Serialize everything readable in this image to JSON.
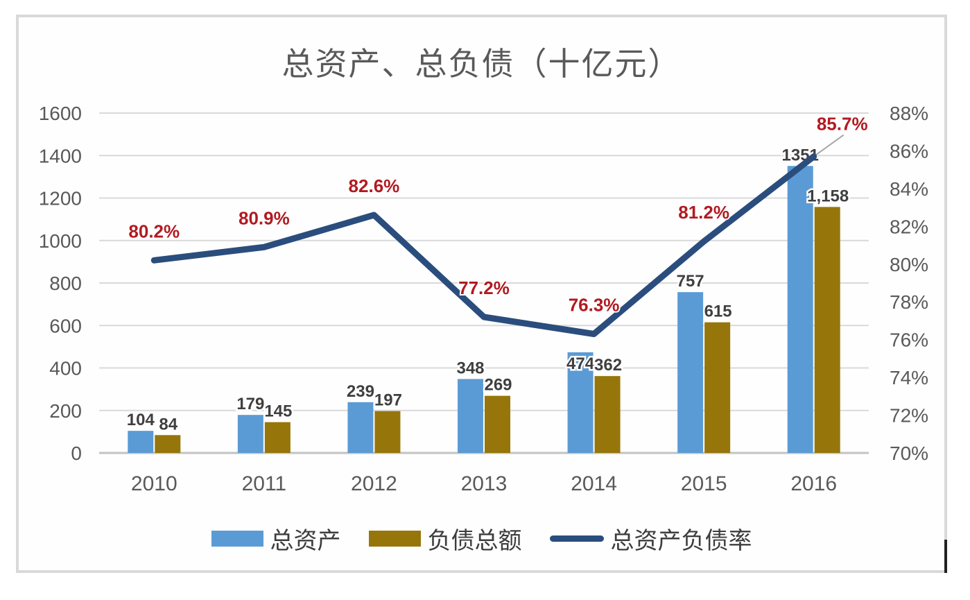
{
  "title": "总资产、总负债（十亿元）",
  "colors": {
    "assets_bar": "#5B9BD5",
    "liabilities_bar": "#96760A",
    "ratio_line": "#2A4D7D",
    "bar_label": "#3F3F3F",
    "line_label": "#B11A21",
    "axis_text": "#595959",
    "gridline": "#D9D9D9",
    "baseline": "#C3C3C3",
    "leader_line": "#A6A6A6"
  },
  "chart_data": {
    "type": "combo-bar-line",
    "title": "总资产、总负债（十亿元）",
    "categories": [
      "2010",
      "2011",
      "2012",
      "2013",
      "2014",
      "2015",
      "2016"
    ],
    "series": [
      {
        "name": "总资产",
        "type": "bar",
        "axis": "left",
        "color": "#5B9BD5",
        "values": [
          104,
          179,
          239,
          348,
          474,
          757,
          1351
        ],
        "labels": [
          "104",
          "179",
          "239",
          "348",
          "474",
          "757",
          "1351"
        ],
        "label_inside": [
          4
        ]
      },
      {
        "name": "负债总额",
        "type": "bar",
        "axis": "left",
        "color": "#96760A",
        "values": [
          84,
          145,
          197,
          269,
          362,
          615,
          1158
        ],
        "labels": [
          "84",
          "145",
          "197",
          "269",
          "362",
          "615",
          "1,158"
        ],
        "label_inside": []
      },
      {
        "name": "总资产负债率",
        "type": "line",
        "axis": "right",
        "color": "#2A4D7D",
        "values": [
          80.2,
          80.9,
          82.6,
          77.2,
          76.3,
          81.2,
          85.7
        ],
        "labels": [
          "80.2%",
          "80.9%",
          "82.6%",
          "77.2%",
          "76.3%",
          "81.2%",
          "85.7%"
        ],
        "label_inside": []
      }
    ],
    "left_axis": {
      "min": 0,
      "max": 1600,
      "step": 200,
      "tick_labels_top_to_bottom": [
        "1600",
        "1400",
        "1200",
        "1000",
        "800",
        "600",
        "400",
        "200",
        "0"
      ]
    },
    "right_axis": {
      "min": 70,
      "max": 88,
      "step": 2,
      "suffix": "%",
      "tick_labels_top_to_bottom": [
        "88%",
        "86%",
        "84%",
        "82%",
        "80%",
        "78%",
        "76%",
        "74%",
        "72%",
        "70%"
      ]
    },
    "grid": true,
    "legend_position": "bottom"
  }
}
